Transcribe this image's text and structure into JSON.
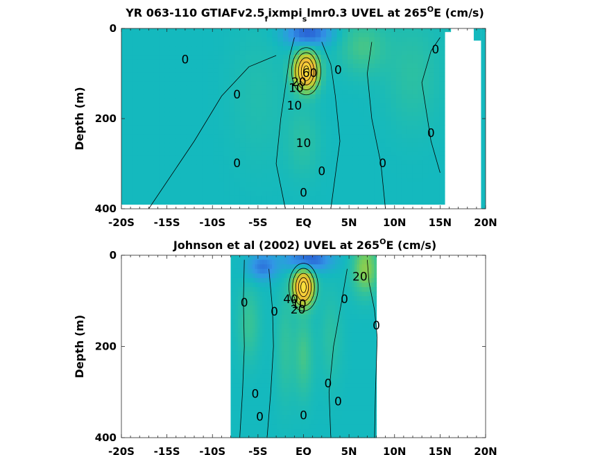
{
  "chart_data": [
    {
      "type": "heatmap",
      "title_parts": [
        "YR 063-110 GTIAFv2.5",
        "f",
        "ixmpi",
        "s",
        "lmr0.3 UVEL at 265",
        "O",
        "E (cm/s)"
      ],
      "ylabel": "Depth (m)",
      "x_ticks": [
        "-20S",
        "-15S",
        "-10S",
        "-5S",
        "EQ",
        "5N",
        "10N",
        "15N",
        "20N"
      ],
      "y_ticks": [
        "0",
        "200",
        "400"
      ],
      "xlim": [
        -20,
        20
      ],
      "ylim": [
        0,
        400
      ],
      "y_reversed": true,
      "data_extent": {
        "lat": [
          -20,
          15.5
        ],
        "depth": [
          0,
          390
        ]
      },
      "core": {
        "lat": 0.3,
        "depth": 95,
        "peak": 100
      },
      "contour_labels": [
        {
          "text": "0",
          "lat": -13,
          "depth": 70
        },
        {
          "text": "0",
          "lat": -7.3,
          "depth": 148
        },
        {
          "text": "0",
          "lat": -7.3,
          "depth": 300
        },
        {
          "text": "20",
          "lat": -0.5,
          "depth": 120
        },
        {
          "text": "10",
          "lat": -0.8,
          "depth": 133
        },
        {
          "text": "60",
          "lat": 0.7,
          "depth": 100
        },
        {
          "text": "10",
          "lat": -1,
          "depth": 172
        },
        {
          "text": "10",
          "lat": 0,
          "depth": 255
        },
        {
          "text": "0",
          "lat": 0,
          "depth": 365
        },
        {
          "text": "0",
          "lat": 2,
          "depth": 318
        },
        {
          "text": "0",
          "lat": 3.8,
          "depth": 93
        },
        {
          "text": "0",
          "lat": 8.7,
          "depth": 300
        },
        {
          "text": "0",
          "lat": 14,
          "depth": 233
        },
        {
          "text": "0",
          "lat": 14.5,
          "depth": 48
        }
      ]
    },
    {
      "type": "heatmap",
      "title_parts": [
        "Johnson et al (2002) UVEL at 265",
        "O",
        "E (cm/s)"
      ],
      "ylabel": "Depth (m)",
      "x_ticks": [
        "-20S",
        "-15S",
        "-10S",
        "-5S",
        "EQ",
        "5N",
        "10N",
        "15N",
        "20N"
      ],
      "y_ticks": [
        "0",
        "200",
        "400"
      ],
      "xlim": [
        -20,
        20
      ],
      "ylim": [
        0,
        400
      ],
      "y_reversed": true,
      "data_extent": {
        "lat": [
          -8,
          8
        ],
        "depth": [
          0,
          400
        ]
      },
      "core": {
        "lat": 0,
        "depth": 70,
        "peak": 100
      },
      "contour_labels": [
        {
          "text": "0",
          "lat": -6.5,
          "depth": 105
        },
        {
          "text": "0",
          "lat": -3.2,
          "depth": 125
        },
        {
          "text": "40",
          "lat": -1.4,
          "depth": 97
        },
        {
          "text": "10",
          "lat": -0.5,
          "depth": 108
        },
        {
          "text": "20",
          "lat": -0.6,
          "depth": 120
        },
        {
          "text": "0",
          "lat": 4.5,
          "depth": 97
        },
        {
          "text": "20",
          "lat": 6.2,
          "depth": 48
        },
        {
          "text": "0",
          "lat": 8,
          "depth": 155
        },
        {
          "text": "0",
          "lat": -5.3,
          "depth": 305
        },
        {
          "text": "0",
          "lat": -4.8,
          "depth": 355
        },
        {
          "text": "0",
          "lat": 2.7,
          "depth": 282
        },
        {
          "text": "0",
          "lat": 3.8,
          "depth": 322
        },
        {
          "text": "0",
          "lat": 0,
          "depth": 352
        }
      ]
    }
  ]
}
